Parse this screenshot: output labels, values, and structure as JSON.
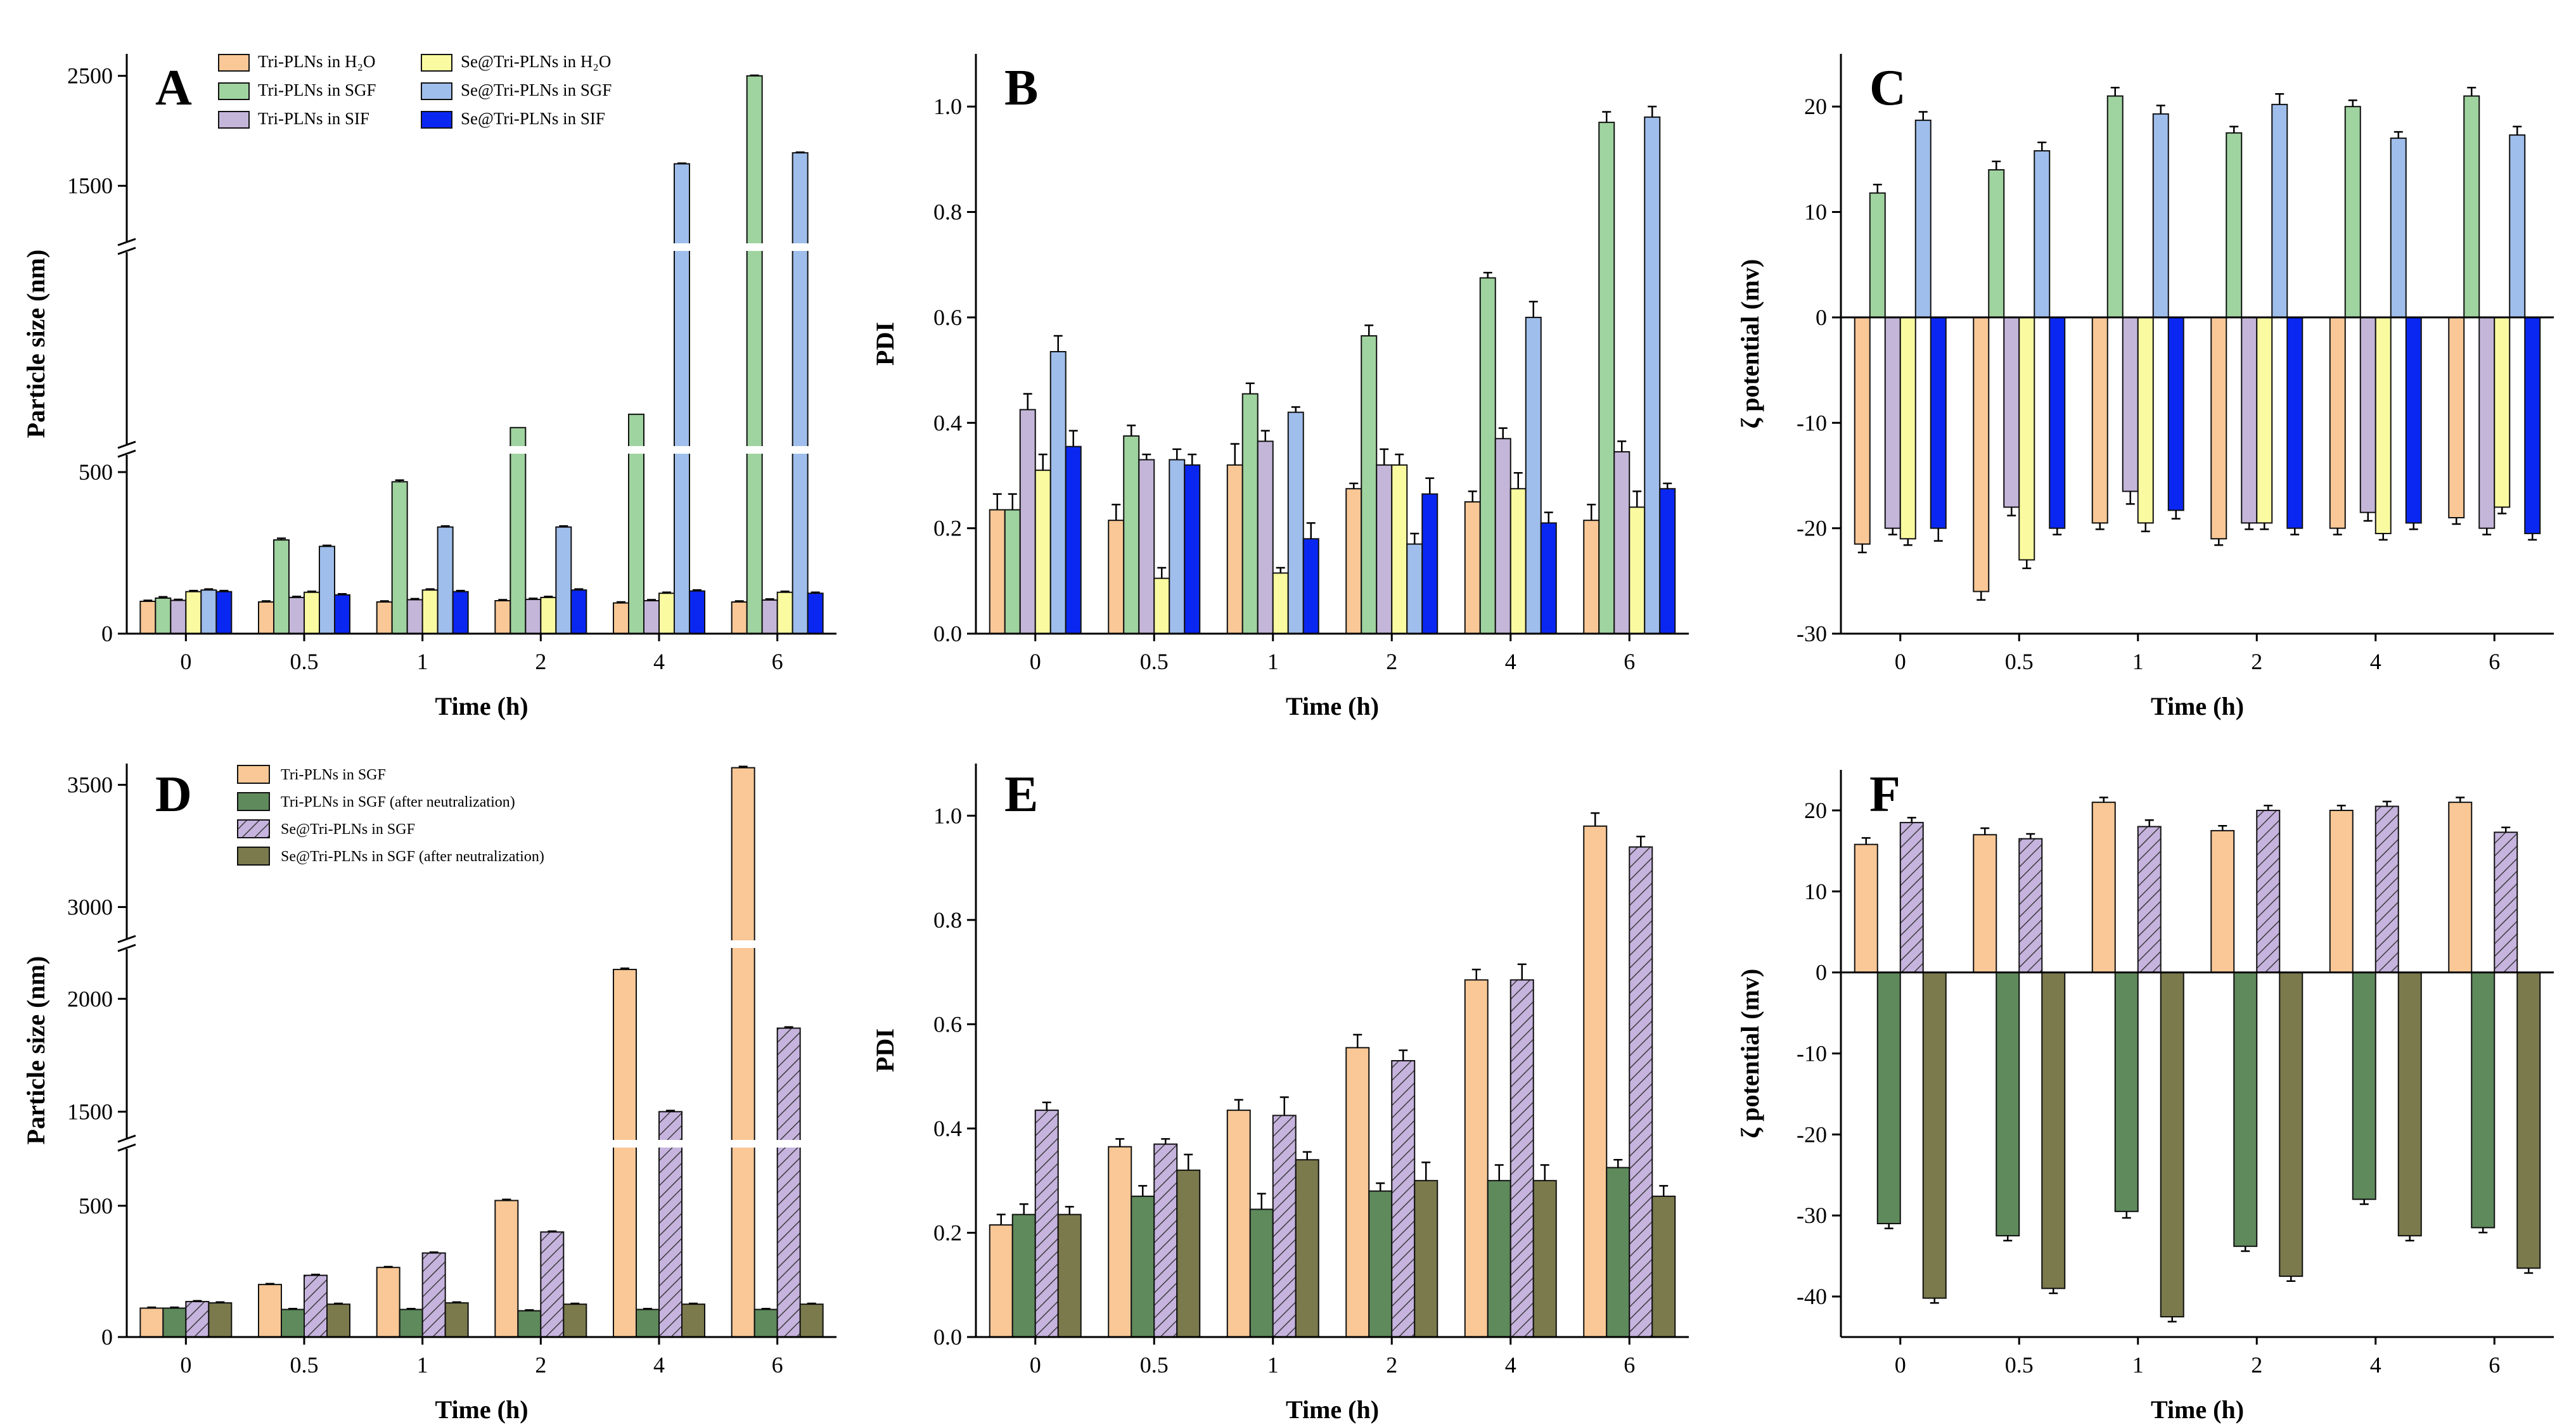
{
  "colors": {
    "tri_h2o": "#F9C896",
    "tri_sgf": "#9FD39F",
    "tri_sif": "#C4B6D9",
    "se_h2o": "#FAFBA0",
    "se_sgf": "#9FBEEC",
    "se_sif": "#0A27F2",
    "d_tri_sgf": "#F9C896",
    "d_tri_neut": "#5E8A5C",
    "d_se_sgf": "#C6B3DE",
    "d_se_neut": "#7B7A4C"
  },
  "chart_data": [
    {
      "panel": "A",
      "type": "bar",
      "title": "",
      "xlabel": "Time (h)",
      "ylabel": "Particle size (nm)",
      "categories": [
        "0",
        "0.5",
        "1",
        "2",
        "4",
        "6"
      ],
      "broken_axis": true,
      "ylim": [
        0,
        2700
      ],
      "segments": [
        [
          0,
          500
        ],
        [
          500,
          1000
        ],
        [
          1000,
          2700
        ]
      ],
      "yticks": [
        "0",
        "500",
        "1500",
        "2500"
      ],
      "legend": [
        "Tri-PLNs in H₂O",
        "Tri-PLNs in SGF",
        "Tri-PLNs in SIF",
        "Se@Tri-PLNs in H₂O",
        "Se@Tri-PLNs in SGF",
        "Se@Tri-PLNs in SIF"
      ],
      "legend_position": "top-left",
      "series": [
        {
          "name": "Tri-PLNs in H₂O",
          "color_key": "tri_h2o",
          "values": [
            100,
            98,
            98,
            102,
            95,
            98
          ],
          "errors": [
            3,
            3,
            3,
            3,
            3,
            3
          ]
        },
        {
          "name": "Tri-PLNs in SGF",
          "color_key": "tri_sgf",
          "values": [
            110,
            290,
            470,
            560,
            610,
            2500
          ],
          "errors": [
            4,
            5,
            5,
            0,
            0,
            5
          ]
        },
        {
          "name": "Tri-PLNs in SIF",
          "color_key": "tri_sif",
          "values": [
            103,
            112,
            105,
            106,
            102,
            104
          ],
          "errors": [
            3,
            3,
            3,
            3,
            3,
            3
          ]
        },
        {
          "name": "Se@Tri-PLNs in H₂O",
          "color_key": "se_h2o",
          "values": [
            130,
            128,
            135,
            112,
            125,
            128
          ],
          "errors": [
            3,
            3,
            3,
            3,
            3,
            3
          ]
        },
        {
          "name": "Se@Tri-PLNs in SGF",
          "color_key": "se_sgf",
          "values": [
            135,
            270,
            330,
            330,
            1700,
            1800
          ],
          "errors": [
            3,
            3,
            3,
            3,
            5,
            5
          ]
        },
        {
          "name": "Se@Tri-PLNs in SIF",
          "color_key": "se_sif",
          "values": [
            130,
            120,
            130,
            135,
            132,
            125
          ],
          "errors": [
            3,
            3,
            3,
            3,
            3,
            3
          ]
        }
      ]
    },
    {
      "panel": "B",
      "type": "bar",
      "title": "",
      "xlabel": "Time (h)",
      "ylabel": "PDI",
      "categories": [
        "0",
        "0.5",
        "1",
        "2",
        "4",
        "6"
      ],
      "ylim": [
        0,
        1.1
      ],
      "yticks": [
        "0.0",
        "0.2",
        "0.4",
        "0.6",
        "0.8",
        "1.0"
      ],
      "series": [
        {
          "name": "Tri-PLNs in H₂O",
          "color_key": "tri_h2o",
          "values": [
            0.235,
            0.215,
            0.32,
            0.275,
            0.25,
            0.215
          ],
          "errors": [
            0.03,
            0.03,
            0.04,
            0.01,
            0.02,
            0.03
          ]
        },
        {
          "name": "Tri-PLNs in SGF",
          "color_key": "tri_sgf",
          "values": [
            0.235,
            0.375,
            0.455,
            0.565,
            0.675,
            0.97
          ],
          "errors": [
            0.03,
            0.02,
            0.02,
            0.02,
            0.01,
            0.02
          ]
        },
        {
          "name": "Tri-PLNs in SIF",
          "color_key": "tri_sif",
          "values": [
            0.425,
            0.33,
            0.365,
            0.32,
            0.37,
            0.345
          ],
          "errors": [
            0.03,
            0.01,
            0.02,
            0.03,
            0.02,
            0.02
          ]
        },
        {
          "name": "Se@Tri-PLNs in H₂O",
          "color_key": "se_h2o",
          "values": [
            0.31,
            0.105,
            0.115,
            0.32,
            0.275,
            0.24
          ],
          "errors": [
            0.03,
            0.02,
            0.01,
            0.02,
            0.03,
            0.03
          ]
        },
        {
          "name": "Se@Tri-PLNs in SGF",
          "color_key": "se_sgf",
          "values": [
            0.535,
            0.33,
            0.42,
            0.17,
            0.6,
            0.98
          ],
          "errors": [
            0.03,
            0.02,
            0.01,
            0.02,
            0.03,
            0.02
          ]
        },
        {
          "name": "Se@Tri-PLNs in SIF",
          "color_key": "se_sif",
          "values": [
            0.355,
            0.32,
            0.18,
            0.265,
            0.21,
            0.275
          ],
          "errors": [
            0.03,
            0.02,
            0.03,
            0.03,
            0.02,
            0.01
          ]
        }
      ]
    },
    {
      "panel": "C",
      "type": "bar",
      "title": "",
      "xlabel": "Time (h)",
      "ylabel": "ζ potential (mv)",
      "categories": [
        "0",
        "0.5",
        "1",
        "2",
        "4",
        "6"
      ],
      "ylim": [
        -30,
        25
      ],
      "yticks": [
        "-30",
        "-20",
        "-10",
        "0",
        "10",
        "20"
      ],
      "series": [
        {
          "name": "Tri-PLNs in H₂O",
          "color_key": "tri_h2o",
          "values": [
            -21.5,
            -26,
            -19.5,
            -21,
            -20,
            -19
          ],
          "errors": [
            0.8,
            0.8,
            0.6,
            0.6,
            0.6,
            0.6
          ]
        },
        {
          "name": "Tri-PLNs in SGF",
          "color_key": "tri_sgf",
          "values": [
            11.8,
            14,
            21,
            17.5,
            20,
            21
          ],
          "errors": [
            0.8,
            0.8,
            0.8,
            0.6,
            0.6,
            0.8
          ]
        },
        {
          "name": "Tri-PLNs in SIF",
          "color_key": "tri_sif",
          "values": [
            -20,
            -18,
            -16.5,
            -19.5,
            -18.5,
            -20
          ],
          "errors": [
            0.6,
            0.8,
            1.2,
            0.6,
            0.8,
            0.6
          ]
        },
        {
          "name": "Se@Tri-PLNs in H₂O",
          "color_key": "se_h2o",
          "values": [
            -21,
            -23,
            -19.5,
            -19.5,
            -20.5,
            -18
          ],
          "errors": [
            0.6,
            0.8,
            0.8,
            0.6,
            0.6,
            0.6
          ]
        },
        {
          "name": "Se@Tri-PLNs in SGF",
          "color_key": "se_sgf",
          "values": [
            18.7,
            15.8,
            19.3,
            20.2,
            17,
            17.3
          ],
          "errors": [
            0.8,
            0.8,
            0.8,
            1,
            0.6,
            0.8
          ]
        },
        {
          "name": "Se@Tri-PLNs in SIF",
          "color_key": "se_sif",
          "values": [
            -20,
            -20,
            -18.3,
            -20,
            -19.5,
            -20.5
          ],
          "errors": [
            1.2,
            0.6,
            0.8,
            0.6,
            0.6,
            0.6
          ]
        }
      ]
    },
    {
      "panel": "D",
      "type": "bar",
      "title": "",
      "xlabel": "Time (h)",
      "ylabel": "Particle size (nm)",
      "categories": [
        "0",
        "0.5",
        "1",
        "2",
        "4",
        "6"
      ],
      "broken_axis": true,
      "ylim": [
        0,
        3600
      ],
      "segments": [
        [
          0,
          700
        ],
        [
          1400,
          2200
        ],
        [
          2900,
          3600
        ]
      ],
      "yticks": [
        "0",
        "500",
        "1500",
        "2000",
        "3000",
        "3500"
      ],
      "legend": [
        "Tri-PLNs in SGF",
        "Tri-PLNs in SGF (after neutralization)",
        "Se@Tri-PLNs in SGF",
        "Se@Tri-PLNs in SGF (after neutralization)"
      ],
      "legend_position": "top-left",
      "series": [
        {
          "name": "Tri-PLNs in SGF",
          "color_key": "d_tri_sgf",
          "values": [
            110,
            200,
            265,
            520,
            2130,
            3570
          ],
          "errors": [
            3,
            3,
            3,
            4,
            5,
            5
          ]
        },
        {
          "name": "Tri-PLNs in SGF (after neutralization)",
          "color_key": "d_tri_neut",
          "values": [
            110,
            105,
            105,
            100,
            105,
            105
          ],
          "errors": [
            3,
            3,
            3,
            3,
            3,
            3
          ]
        },
        {
          "name": "Se@Tri-PLNs in SGF",
          "color_key": "d_se_sgf",
          "hatch": true,
          "values": [
            135,
            235,
            320,
            400,
            1500,
            1870
          ],
          "errors": [
            3,
            3,
            3,
            3,
            5,
            5
          ]
        },
        {
          "name": "Se@Tri-PLNs in SGF (after neutralization)",
          "color_key": "d_se_neut",
          "values": [
            130,
            125,
            130,
            125,
            125,
            125
          ],
          "errors": [
            3,
            3,
            3,
            3,
            3,
            3
          ]
        }
      ]
    },
    {
      "panel": "E",
      "type": "bar",
      "title": "",
      "xlabel": "Time (h)",
      "ylabel": "PDI",
      "categories": [
        "0",
        "0.5",
        "1",
        "2",
        "4",
        "6"
      ],
      "ylim": [
        0,
        1.1
      ],
      "yticks": [
        "0.0",
        "0.2",
        "0.4",
        "0.6",
        "0.8",
        "1.0"
      ],
      "series": [
        {
          "name": "Tri-PLNs in SGF",
          "color_key": "d_tri_sgf",
          "values": [
            0.215,
            0.365,
            0.435,
            0.555,
            0.685,
            0.98
          ],
          "errors": [
            0.02,
            0.015,
            0.02,
            0.025,
            0.02,
            0.025
          ]
        },
        {
          "name": "Tri-PLNs in SGF (after neutralization)",
          "color_key": "d_tri_neut",
          "values": [
            0.235,
            0.27,
            0.245,
            0.28,
            0.3,
            0.325
          ],
          "errors": [
            0.02,
            0.02,
            0.03,
            0.015,
            0.03,
            0.015
          ]
        },
        {
          "name": "Se@Tri-PLNs in SGF",
          "color_key": "d_se_sgf",
          "hatch": true,
          "values": [
            0.435,
            0.37,
            0.425,
            0.53,
            0.685,
            0.94
          ],
          "errors": [
            0.015,
            0.01,
            0.035,
            0.02,
            0.03,
            0.02
          ]
        },
        {
          "name": "Se@Tri-PLNs in SGF (after neutralization)",
          "color_key": "d_se_neut",
          "values": [
            0.235,
            0.32,
            0.34,
            0.3,
            0.3,
            0.27
          ],
          "errors": [
            0.015,
            0.03,
            0.015,
            0.035,
            0.03,
            0.02
          ]
        }
      ]
    },
    {
      "panel": "F",
      "type": "bar",
      "title": "",
      "xlabel": "Time (h)",
      "ylabel": "ζ potential (mv)",
      "categories": [
        "0",
        "0.5",
        "1",
        "2",
        "4",
        "6"
      ],
      "ylim": [
        -45,
        25
      ],
      "yticks": [
        "-40",
        "-30",
        "-20",
        "-10",
        "0",
        "10",
        "20"
      ],
      "series": [
        {
          "name": "Tri-PLNs in SGF",
          "color_key": "d_tri_sgf",
          "values": [
            15.8,
            17,
            21,
            17.5,
            20,
            21
          ],
          "errors": [
            0.8,
            0.8,
            0.6,
            0.6,
            0.6,
            0.6
          ]
        },
        {
          "name": "Tri-PLNs in SGF (after neutralization)",
          "color_key": "d_tri_neut",
          "values": [
            -31,
            -32.5,
            -29.5,
            -33.8,
            -28,
            -31.5
          ],
          "errors": [
            0.6,
            0.6,
            0.8,
            0.6,
            0.6,
            0.6
          ]
        },
        {
          "name": "Se@Tri-PLNs in SGF",
          "color_key": "d_se_sgf",
          "hatch": true,
          "values": [
            18.5,
            16.5,
            18,
            20,
            20.5,
            17.3
          ],
          "errors": [
            0.6,
            0.6,
            0.8,
            0.6,
            0.6,
            0.6
          ]
        },
        {
          "name": "Se@Tri-PLNs in SGF (after neutralization)",
          "color_key": "d_se_neut",
          "values": [
            -40.2,
            -39,
            -42.5,
            -37.5,
            -32.5,
            -36.5
          ],
          "errors": [
            0.6,
            0.6,
            0.6,
            0.6,
            0.6,
            0.6
          ]
        }
      ]
    }
  ]
}
